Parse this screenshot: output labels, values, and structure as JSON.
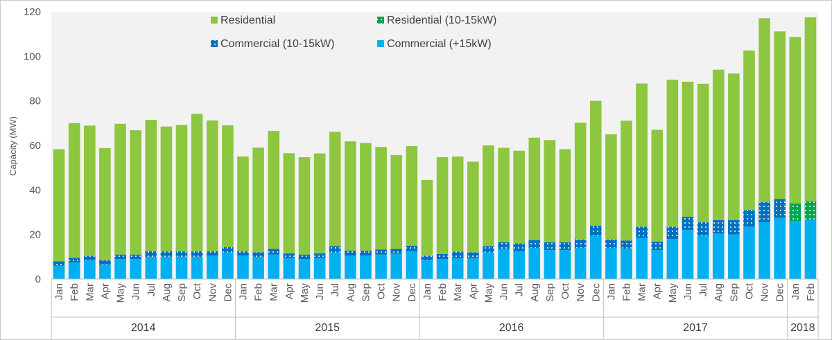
{
  "chart_data": {
    "type": "bar",
    "stacked": true,
    "ylabel": "Capacity (MW)",
    "ylim": [
      0,
      120
    ],
    "yticks": [
      0,
      20,
      40,
      60,
      80,
      100,
      120
    ],
    "grid": false,
    "legend_position": "top-center",
    "months": [
      "Jan",
      "Feb",
      "Mar",
      "Apr",
      "May",
      "Jun",
      "Jul",
      "Aug",
      "Sep",
      "Oct",
      "Nov",
      "Dec",
      "Jan",
      "Feb",
      "Mar",
      "Apr",
      "May",
      "Jun",
      "Jul",
      "Aug",
      "Sep",
      "Oct",
      "Nov",
      "Dec",
      "Jan",
      "Feb",
      "Mar",
      "Apr",
      "May",
      "Jun",
      "Jul",
      "Aug",
      "Sep",
      "Oct",
      "Nov",
      "Dec",
      "Jan",
      "Feb",
      "Mar",
      "Apr",
      "May",
      "Jun",
      "Jul",
      "Aug",
      "Sep",
      "Oct",
      "Nov",
      "Dec",
      "Jan",
      "Feb"
    ],
    "years": [
      {
        "label": "2014",
        "count": 12
      },
      {
        "label": "2015",
        "count": 12
      },
      {
        "label": "2016",
        "count": 12
      },
      {
        "label": "2017",
        "count": 12
      },
      {
        "label": "2018",
        "count": 2
      }
    ],
    "series": [
      {
        "name": "Commercial (+15kW)",
        "color": "#00b0f0",
        "pattern": false,
        "values": [
          6,
          7.5,
          8.5,
          6.5,
          9,
          9,
          10,
          10,
          10,
          10,
          10.5,
          12,
          10.5,
          10,
          11,
          9.5,
          9,
          9.5,
          12,
          10.5,
          10.5,
          11,
          11.5,
          12.5,
          8.5,
          9,
          9.5,
          9.5,
          12,
          13.5,
          12.5,
          14,
          13,
          13,
          14,
          19.5,
          14,
          13.5,
          18.5,
          13,
          18,
          22,
          19.5,
          20.5,
          20,
          23.5,
          25.5,
          27.5,
          26,
          26.5
        ]
      },
      {
        "name": "Commercial (10-15kW)",
        "color": "#0070c0",
        "pattern": true,
        "values": [
          2,
          2,
          2,
          2,
          2,
          2,
          2.5,
          2.5,
          2.5,
          2.5,
          2,
          2.3,
          2,
          2,
          2.5,
          2,
          2,
          2,
          2.8,
          2.3,
          2.3,
          2.3,
          2,
          2.5,
          2,
          2.2,
          2.8,
          2.5,
          2.8,
          3,
          3.5,
          3.5,
          3.5,
          3.5,
          3.8,
          4.5,
          3.8,
          3.8,
          5,
          3.8,
          5.5,
          6,
          6,
          6,
          6.5,
          7.5,
          9,
          8.5,
          0,
          0
        ]
      },
      {
        "name": "Residential (10-15kW)",
        "color": "#00a650",
        "pattern": true,
        "values": [
          0,
          0,
          0,
          0,
          0,
          0,
          0,
          0,
          0,
          0,
          0,
          0,
          0,
          0,
          0,
          0,
          0,
          0,
          0,
          0,
          0,
          0,
          0,
          0,
          0,
          0,
          0,
          0,
          0,
          0,
          0,
          0,
          0,
          0,
          0,
          0,
          0,
          0,
          0,
          0,
          0,
          0,
          0,
          0,
          0,
          0,
          0,
          0,
          8,
          8.5
        ]
      },
      {
        "name": "Residential",
        "color": "#8dc63f",
        "pattern": false,
        "values": [
          50.3,
          60.5,
          58.4,
          50.3,
          58.7,
          55.8,
          59,
          56,
          56.7,
          61.7,
          58.7,
          54.7,
          42.5,
          47,
          53,
          45,
          43.7,
          44.9,
          51.3,
          49,
          48.3,
          46,
          42.2,
          44.7,
          34,
          43.5,
          42.7,
          40.7,
          45.2,
          42.4,
          41.6,
          46,
          45.9,
          41.8,
          52.4,
          56,
          47.2,
          53.8,
          64.3,
          50.2,
          66,
          60.6,
          62.2,
          67.5,
          65.8,
          71.6,
          82.6,
          75.2,
          74.7,
          82.5
        ]
      }
    ]
  }
}
